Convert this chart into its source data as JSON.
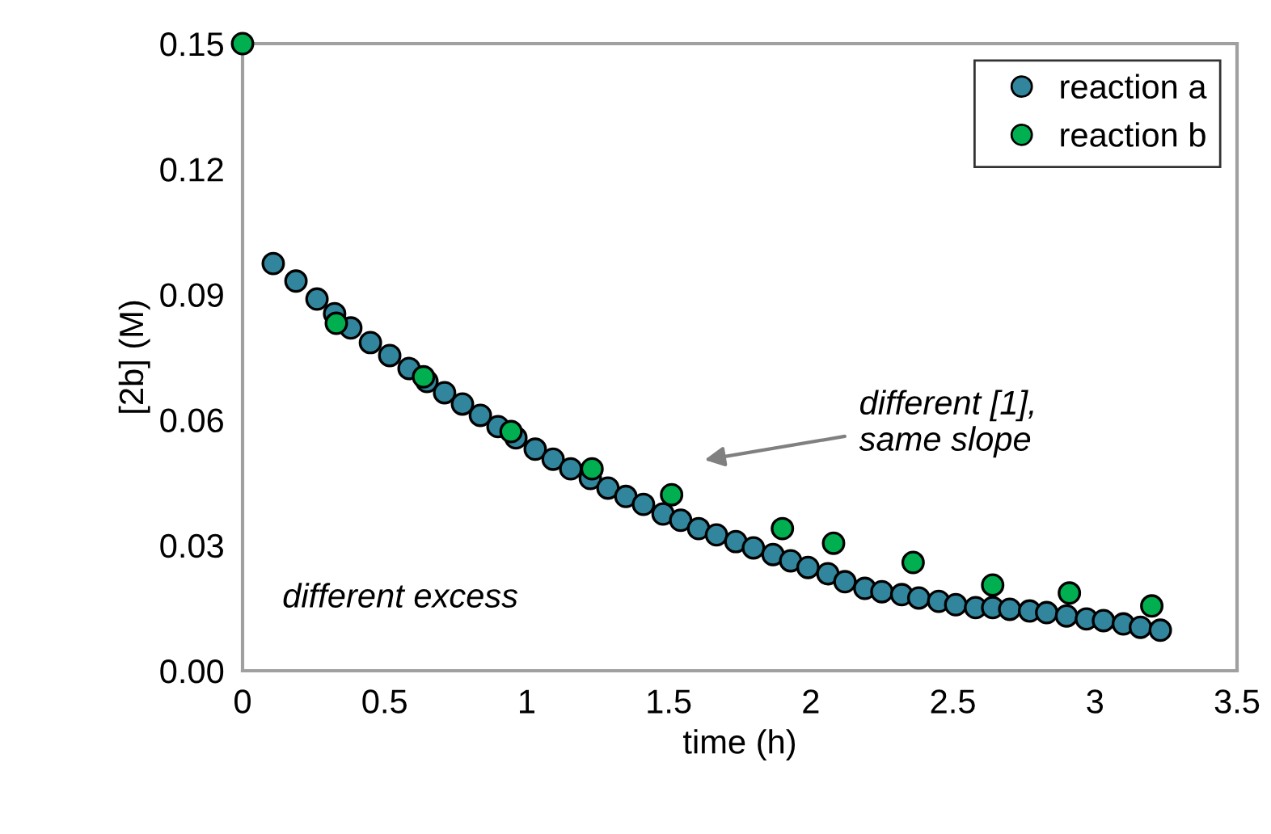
{
  "chart_data": {
    "type": "scatter",
    "xlabel": "time (h)",
    "ylabel": "[2b] (M)",
    "xlim": [
      0,
      3.5
    ],
    "ylim": [
      0,
      0.15
    ],
    "xticks": [
      0,
      0.5,
      1,
      1.5,
      2,
      2.5,
      3,
      3.5
    ],
    "yticks": [
      {
        "value": 0,
        "label": "0.00"
      },
      {
        "value": 0.03,
        "label": "0.03"
      },
      {
        "value": 0.06,
        "label": "0.06"
      },
      {
        "value": 0.09,
        "label": "0.09"
      },
      {
        "value": 0.12,
        "label": "0.12"
      },
      {
        "value": 0.15,
        "label": "0.15"
      }
    ],
    "grid": false,
    "legend": "top right",
    "marker": "circle",
    "annotations": [
      "different [1],\nsame slope",
      "different excess"
    ],
    "series": [
      {
        "name": "reaction a",
        "color": "#31859c",
        "x": [
          0.108,
          0.188,
          0.262,
          0.324,
          0.381,
          0.45,
          0.518,
          0.586,
          0.649,
          0.711,
          0.774,
          0.837,
          0.899,
          0.962,
          1.03,
          1.093,
          1.155,
          1.224,
          1.286,
          1.349,
          1.411,
          1.48,
          1.542,
          1.605,
          1.668,
          1.736,
          1.798,
          1.867,
          1.929,
          1.99,
          2.06,
          2.12,
          2.19,
          2.25,
          2.32,
          2.38,
          2.45,
          2.51,
          2.58,
          2.64,
          2.7,
          2.77,
          2.83,
          2.9,
          2.97,
          3.03,
          3.1,
          3.16,
          3.23
        ],
        "values": [
          0.0974,
          0.0932,
          0.0889,
          0.0854,
          0.082,
          0.0785,
          0.0754,
          0.0723,
          0.0692,
          0.0665,
          0.0638,
          0.0611,
          0.0584,
          0.0557,
          0.053,
          0.0506,
          0.0483,
          0.046,
          0.0437,
          0.0417,
          0.0398,
          0.0375,
          0.036,
          0.034,
          0.0325,
          0.0309,
          0.0294,
          0.0278,
          0.0263,
          0.0247,
          0.0232,
          0.0213,
          0.0197,
          0.0189,
          0.0182,
          0.0174,
          0.0166,
          0.0158,
          0.0151,
          0.0151,
          0.0147,
          0.0143,
          0.0139,
          0.0131,
          0.0124,
          0.012,
          0.0112,
          0.0104,
          0.0097
        ]
      },
      {
        "name": "reaction b",
        "color": "#00b050",
        "x": [
          0,
          0.33,
          0.637,
          0.945,
          1.23,
          1.51,
          1.9,
          2.08,
          2.36,
          2.64,
          2.91,
          3.2
        ],
        "values": [
          0.15,
          0.0831,
          0.0703,
          0.0572,
          0.0483,
          0.0421,
          0.034,
          0.0305,
          0.0259,
          0.0205,
          0.0186,
          0.0155
        ]
      }
    ]
  }
}
